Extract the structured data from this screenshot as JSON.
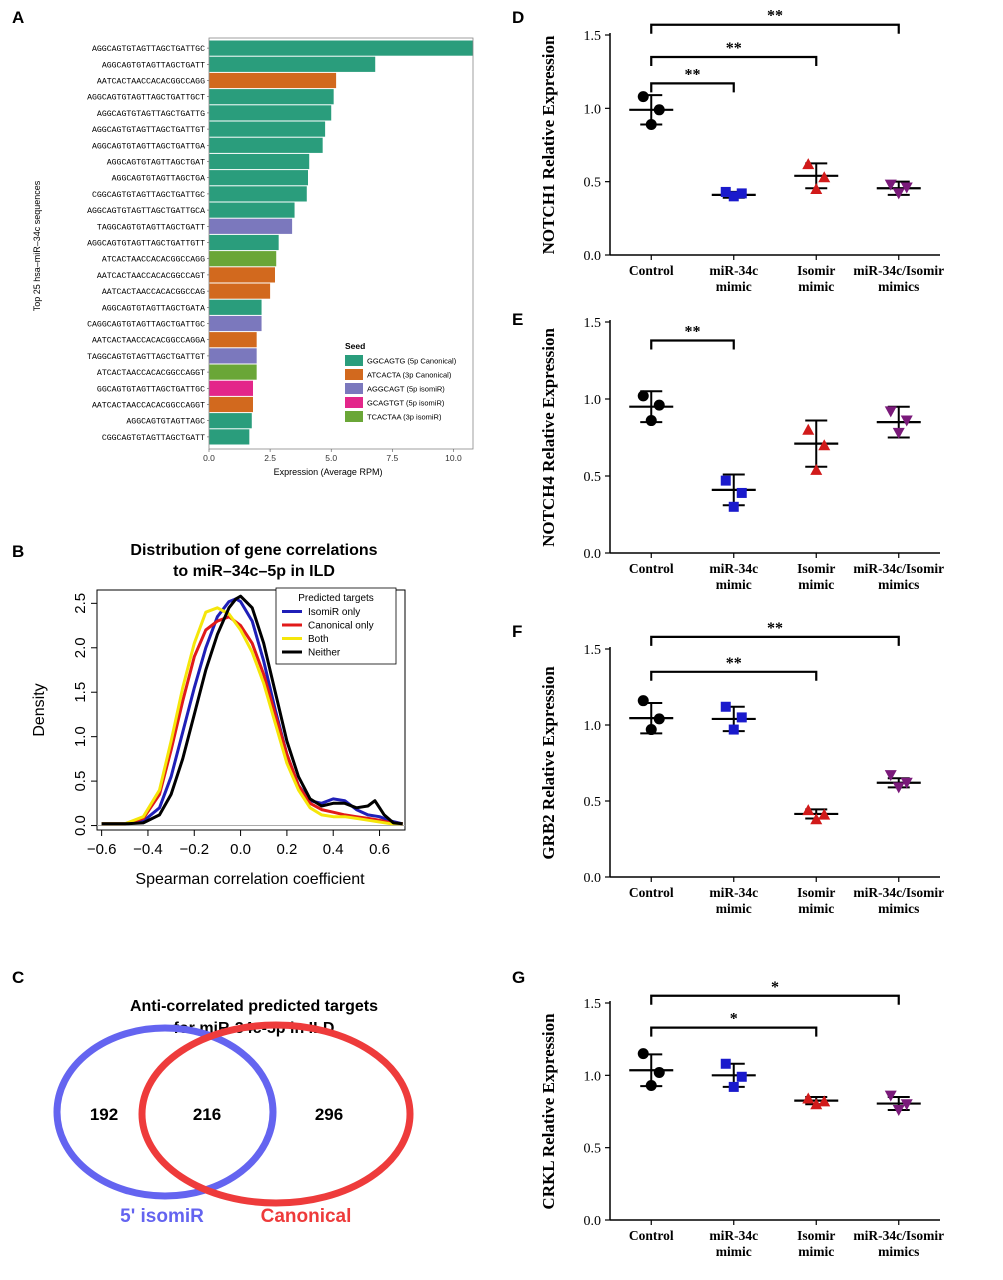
{
  "panels": {
    "a": "A",
    "b": "B",
    "c": "C",
    "d": "D",
    "e": "E",
    "f": "F",
    "g": "G"
  },
  "chart_data": [
    {
      "id": "A",
      "type": "bar",
      "orientation": "horizontal",
      "ylabel": "Top 25 hsa–miR–34c sequences",
      "xlabel": "Expression (Average RPM)",
      "xlim": [
        0,
        10.8
      ],
      "xticks": [
        "0.0",
        "2.5",
        "5.0",
        "7.5",
        "10.0"
      ],
      "xtick_values": [
        0,
        2.5,
        5.0,
        7.5,
        10.0
      ],
      "legend_title": "Seed",
      "legend": [
        {
          "label": "GGCAGTG (5p Canonical)",
          "color": "#2a9d7c"
        },
        {
          "label": "ATCACTA (3p Canonical)",
          "color": "#d2691e"
        },
        {
          "label": "AGGCAGT (5p isomiR)",
          "color": "#7b78bd"
        },
        {
          "label": "GCAGTGT (5p isomiR)",
          "color": "#e3268a"
        },
        {
          "label": "TCACTAA (3p isomiR)",
          "color": "#6aa637"
        }
      ],
      "categories": [
        "AGGCAGTGTAGTTAGCTGATTGC",
        "AGGCAGTGTAGTTAGCTGATT",
        "AATCACTAACCACACGGCCAGG",
        "AGGCAGTGTAGTTAGCTGATTGCT",
        "AGGCAGTGTAGTTAGCTGATTG",
        "AGGCAGTGTAGTTAGCTGATTGT",
        "AGGCAGTGTAGTTAGCTGATTGA",
        "AGGCAGTGTAGTTAGCTGAT",
        "AGGCAGTGTAGTTAGCTGA",
        "CGGCAGTGTAGTTAGCTGATTGC",
        "AGGCAGTGTAGTTAGCTGATTGCA",
        "TAGGCAGTGTAGTTAGCTGATT",
        "AGGCAGTGTAGTTAGCTGATTGTT",
        "ATCACTAACCACACGGCCAGG",
        "AATCACTAACCACACGGCCAGT",
        "AATCACTAACCACACGGCCAG",
        "AGGCAGTGTAGTTAGCTGATA",
        "CAGGCAGTGTAGTTAGCTGATTGC",
        "AATCACTAACCACACGGCCAGGA",
        "TAGGCAGTGTAGTTAGCTGATTGT",
        "ATCACTAACCACACGGCCAGGT",
        "GGCAGTGTAGTTAGCTGATTGC",
        "AATCACTAACCACACGGCCAGGT",
        "AGGCAGTGTAGTTAGC",
        "CGGCAGTGTAGTTAGCTGATT"
      ],
      "values": [
        10.8,
        6.8,
        5.2,
        5.1,
        5.0,
        4.75,
        4.65,
        4.1,
        4.05,
        4.0,
        3.5,
        3.4,
        2.85,
        2.75,
        2.7,
        2.5,
        2.15,
        2.15,
        1.95,
        1.95,
        1.95,
        1.8,
        1.8,
        1.75,
        1.65
      ],
      "seed_index": [
        0,
        0,
        1,
        0,
        0,
        0,
        0,
        0,
        0,
        0,
        0,
        2,
        0,
        4,
        1,
        1,
        0,
        2,
        1,
        2,
        4,
        3,
        1,
        0,
        0
      ]
    },
    {
      "id": "B",
      "type": "line",
      "title": "Distribution of gene correlations to miR–34c–5p in ILD",
      "xlabel": "Spearman correlation coefficient",
      "ylabel": "Density",
      "xlim": [
        -0.62,
        0.71
      ],
      "ylim": [
        -0.05,
        2.65
      ],
      "xticks": [
        "−0.6",
        "−0.4",
        "−0.2",
        "0.0",
        "0.2",
        "0.4",
        "0.6"
      ],
      "xtick_values": [
        -0.6,
        -0.4,
        -0.2,
        0.0,
        0.2,
        0.4,
        0.6
      ],
      "yticks": [
        "0.0",
        "0.5",
        "1.0",
        "1.5",
        "2.0",
        "2.5"
      ],
      "ytick_values": [
        0,
        0.5,
        1,
        1.5,
        2,
        2.5
      ],
      "legend_title": "Predicted targets",
      "series": [
        {
          "name": "IsomiR only",
          "color": "#1f1fb8",
          "x": [
            -0.6,
            -0.5,
            -0.42,
            -0.35,
            -0.3,
            -0.25,
            -0.2,
            -0.15,
            -0.1,
            -0.05,
            -0.02,
            0.0,
            0.05,
            0.1,
            0.15,
            0.2,
            0.25,
            0.3,
            0.35,
            0.4,
            0.45,
            0.5,
            0.55,
            0.6,
            0.65,
            0.7
          ],
          "y": [
            0.02,
            0.02,
            0.05,
            0.2,
            0.55,
            1.05,
            1.55,
            2.0,
            2.35,
            2.52,
            2.55,
            2.52,
            2.3,
            1.85,
            1.3,
            0.8,
            0.45,
            0.28,
            0.25,
            0.3,
            0.28,
            0.18,
            0.12,
            0.1,
            0.05,
            0.02
          ]
        },
        {
          "name": "Canonical only",
          "color": "#e11a1a",
          "x": [
            -0.6,
            -0.5,
            -0.42,
            -0.35,
            -0.3,
            -0.25,
            -0.2,
            -0.15,
            -0.1,
            -0.05,
            0.0,
            0.05,
            0.1,
            0.15,
            0.2,
            0.25,
            0.3,
            0.35,
            0.4,
            0.45,
            0.5,
            0.55,
            0.6,
            0.65,
            0.7
          ],
          "y": [
            0.02,
            0.02,
            0.08,
            0.35,
            0.85,
            1.4,
            1.9,
            2.2,
            2.3,
            2.35,
            2.25,
            2.05,
            1.7,
            1.25,
            0.8,
            0.45,
            0.25,
            0.18,
            0.15,
            0.12,
            0.1,
            0.08,
            0.06,
            0.03,
            0.02
          ]
        },
        {
          "name": "Both",
          "color": "#f5e60a",
          "x": [
            -0.6,
            -0.5,
            -0.42,
            -0.35,
            -0.3,
            -0.25,
            -0.2,
            -0.15,
            -0.1,
            -0.05,
            0.0,
            0.05,
            0.1,
            0.15,
            0.2,
            0.25,
            0.3,
            0.35,
            0.4,
            0.45,
            0.5,
            0.55,
            0.6,
            0.65,
            0.7
          ],
          "y": [
            0.02,
            0.02,
            0.1,
            0.4,
            0.95,
            1.55,
            2.05,
            2.4,
            2.45,
            2.38,
            2.2,
            1.95,
            1.6,
            1.15,
            0.7,
            0.4,
            0.2,
            0.12,
            0.1,
            0.1,
            0.08,
            0.06,
            0.04,
            0.02,
            0.02
          ]
        },
        {
          "name": "Neither",
          "color": "#000000",
          "x": [
            -0.6,
            -0.5,
            -0.42,
            -0.35,
            -0.3,
            -0.25,
            -0.2,
            -0.15,
            -0.1,
            -0.05,
            -0.02,
            0.0,
            0.05,
            0.1,
            0.15,
            0.2,
            0.25,
            0.3,
            0.35,
            0.4,
            0.45,
            0.5,
            0.55,
            0.58,
            0.62,
            0.66,
            0.7
          ],
          "y": [
            0.02,
            0.02,
            0.03,
            0.12,
            0.35,
            0.75,
            1.25,
            1.75,
            2.15,
            2.45,
            2.55,
            2.58,
            2.45,
            2.05,
            1.5,
            0.95,
            0.55,
            0.3,
            0.22,
            0.25,
            0.25,
            0.2,
            0.22,
            0.28,
            0.12,
            0.03,
            0.02
          ]
        }
      ]
    },
    {
      "id": "C",
      "type": "venn",
      "title": "Anti-correlated predicted targets for miR-34c-5p in ILD",
      "sets": [
        {
          "name": "5' isomiR",
          "color": "#6464f0",
          "only": "192"
        },
        {
          "name": "Canonical",
          "color": "#ee3b3b",
          "only": "296"
        }
      ],
      "overlap": "216"
    },
    {
      "id": "D",
      "type": "scatter",
      "ylabel": "NOTCH1 Relative Expression",
      "ylim": [
        0,
        1.5
      ],
      "yticks": [
        "0.0",
        "0.5",
        "1.0",
        "1.5"
      ],
      "ytick_values": [
        0,
        0.5,
        1.0,
        1.5
      ],
      "categories": [
        [
          "Control"
        ],
        [
          "miR-34c",
          "mimic"
        ],
        [
          "Isomir",
          "mimic"
        ],
        [
          "miR-34c/Isomir",
          "mimics"
        ]
      ],
      "groups": [
        {
          "points": [
            1.08,
            0.99,
            0.89
          ],
          "mean": 0.99,
          "sd": 0.1,
          "color": "#000000",
          "marker": "circle"
        },
        {
          "points": [
            0.43,
            0.42,
            0.4
          ],
          "mean": 0.41,
          "sd": 0.02,
          "color": "#1a1acc",
          "marker": "square"
        },
        {
          "points": [
            0.62,
            0.53,
            0.45
          ],
          "mean": 0.54,
          "sd": 0.085,
          "color": "#d11a1a",
          "marker": "triangle"
        },
        {
          "points": [
            0.48,
            0.46,
            0.42
          ],
          "mean": 0.455,
          "sd": 0.045,
          "color": "#7a1a7a",
          "marker": "invtriangle"
        }
      ],
      "significance": [
        {
          "from": 0,
          "to": 1,
          "label": "**",
          "y": 1.17
        },
        {
          "from": 0,
          "to": 2,
          "label": "**",
          "y": 1.35
        },
        {
          "from": 0,
          "to": 3,
          "label": "**",
          "y": 1.57
        }
      ]
    },
    {
      "id": "E",
      "type": "scatter",
      "ylabel": "NOTCH4 Relative Expression",
      "ylim": [
        0,
        1.5
      ],
      "yticks": [
        "0.0",
        "0.5",
        "1.0",
        "1.5"
      ],
      "ytick_values": [
        0,
        0.5,
        1.0,
        1.5
      ],
      "categories": [
        [
          "Control"
        ],
        [
          "miR-34c",
          "mimic"
        ],
        [
          "Isomir",
          "mimic"
        ],
        [
          "miR-34c/Isomir",
          "mimics"
        ]
      ],
      "groups": [
        {
          "points": [
            1.02,
            0.96,
            0.86
          ],
          "mean": 0.95,
          "sd": 0.1,
          "color": "#000000",
          "marker": "circle"
        },
        {
          "points": [
            0.47,
            0.39,
            0.3
          ],
          "mean": 0.41,
          "sd": 0.1,
          "color": "#1a1acc",
          "marker": "square"
        },
        {
          "points": [
            0.8,
            0.7,
            0.54
          ],
          "mean": 0.71,
          "sd": 0.15,
          "color": "#d11a1a",
          "marker": "triangle"
        },
        {
          "points": [
            0.92,
            0.86,
            0.78
          ],
          "mean": 0.85,
          "sd": 0.1,
          "color": "#7a1a7a",
          "marker": "invtriangle"
        }
      ],
      "significance": [
        {
          "from": 0,
          "to": 1,
          "label": "**",
          "y": 1.38
        }
      ]
    },
    {
      "id": "F",
      "type": "scatter",
      "ylabel": "GRB2 Relative Expression",
      "ylim": [
        0,
        1.5
      ],
      "yticks": [
        "0.0",
        "0.5",
        "1.0",
        "1.5"
      ],
      "ytick_values": [
        0,
        0.5,
        1.0,
        1.5
      ],
      "categories": [
        [
          "Control"
        ],
        [
          "miR-34c",
          "mimic"
        ],
        [
          "Isomir",
          "mimic"
        ],
        [
          "miR-34c/Isomir",
          "mimics"
        ]
      ],
      "groups": [
        {
          "points": [
            1.16,
            1.04,
            0.97
          ],
          "mean": 1.045,
          "sd": 0.1,
          "color": "#000000",
          "marker": "circle"
        },
        {
          "points": [
            1.12,
            1.05,
            0.97
          ],
          "mean": 1.04,
          "sd": 0.08,
          "color": "#1a1acc",
          "marker": "square"
        },
        {
          "points": [
            0.44,
            0.41,
            0.38
          ],
          "mean": 0.415,
          "sd": 0.03,
          "color": "#d11a1a",
          "marker": "triangle"
        },
        {
          "points": [
            0.67,
            0.62,
            0.59
          ],
          "mean": 0.62,
          "sd": 0.03,
          "color": "#7a1a7a",
          "marker": "invtriangle"
        }
      ],
      "significance": [
        {
          "from": 0,
          "to": 2,
          "label": "**",
          "y": 1.35
        },
        {
          "from": 0,
          "to": 3,
          "label": "**",
          "y": 1.58
        }
      ]
    },
    {
      "id": "G",
      "type": "scatter",
      "ylabel": "CRKL Relative Expression",
      "ylim": [
        0,
        1.5
      ],
      "yticks": [
        "0.0",
        "0.5",
        "1.0",
        "1.5"
      ],
      "ytick_values": [
        0,
        0.5,
        1.0,
        1.5
      ],
      "categories": [
        [
          "Control"
        ],
        [
          "miR-34c",
          "mimic"
        ],
        [
          "Isomir",
          "mimic"
        ],
        [
          "miR-34c/Isomir",
          "mimics"
        ]
      ],
      "groups": [
        {
          "points": [
            1.15,
            1.02,
            0.93
          ],
          "mean": 1.035,
          "sd": 0.11,
          "color": "#000000",
          "marker": "circle"
        },
        {
          "points": [
            1.08,
            0.99,
            0.92
          ],
          "mean": 1.0,
          "sd": 0.08,
          "color": "#1a1acc",
          "marker": "square"
        },
        {
          "points": [
            0.84,
            0.82,
            0.8
          ],
          "mean": 0.825,
          "sd": 0.025,
          "color": "#d11a1a",
          "marker": "triangle"
        },
        {
          "points": [
            0.86,
            0.8,
            0.76
          ],
          "mean": 0.805,
          "sd": 0.045,
          "color": "#7a1a7a",
          "marker": "invtriangle"
        }
      ],
      "significance": [
        {
          "from": 0,
          "to": 2,
          "label": "*",
          "y": 1.33
        },
        {
          "from": 0,
          "to": 3,
          "label": "*",
          "y": 1.55
        }
      ]
    }
  ]
}
